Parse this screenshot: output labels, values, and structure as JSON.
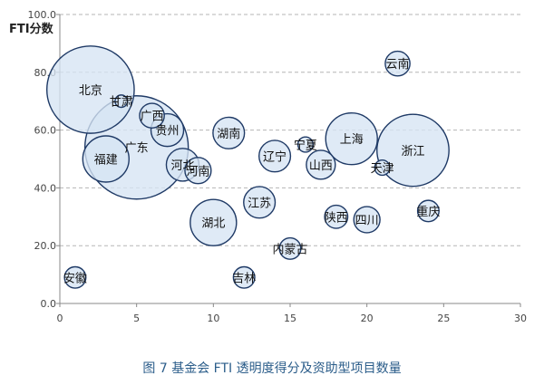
{
  "chart_data": {
    "type": "scatter",
    "bubble": true,
    "ylabel": "FTI分数",
    "xlabel": "",
    "xlim": [
      0,
      30
    ],
    "ylim": [
      0,
      100
    ],
    "xticks": [
      "0",
      "5",
      "10",
      "15",
      "20",
      "25",
      "30"
    ],
    "yticks": [
      "0.0",
      "20.0",
      "40.0",
      "60.0",
      "80.0",
      "100.0"
    ],
    "grid": "horizontal-dashed",
    "bubble_fill": "#d6e4f3",
    "bubble_stroke": "#1f3a66",
    "points": [
      {
        "label": "北京",
        "x": 2,
        "y": 74,
        "size": 100
      },
      {
        "label": "甘肃",
        "x": 4,
        "y": 70,
        "size": 2
      },
      {
        "label": "广西",
        "x": 6,
        "y": 65,
        "size": 8
      },
      {
        "label": "贵州",
        "x": 7,
        "y": 60,
        "size": 14
      },
      {
        "label": "广东",
        "x": 5,
        "y": 54,
        "size": 140
      },
      {
        "label": "湖南",
        "x": 11,
        "y": 59,
        "size": 13
      },
      {
        "label": "福建",
        "x": 3,
        "y": 50,
        "size": 28
      },
      {
        "label": "河北",
        "x": 8,
        "y": 48,
        "size": 14
      },
      {
        "label": "河南",
        "x": 9,
        "y": 46,
        "size": 9
      },
      {
        "label": "辽宁",
        "x": 14,
        "y": 51,
        "size": 13
      },
      {
        "label": "宁夏",
        "x": 16,
        "y": 55,
        "size": 3
      },
      {
        "label": "山西",
        "x": 17,
        "y": 48,
        "size": 11
      },
      {
        "label": "上海",
        "x": 19,
        "y": 57,
        "size": 35
      },
      {
        "label": "浙江",
        "x": 23,
        "y": 53,
        "size": 68
      },
      {
        "label": "天津",
        "x": 21,
        "y": 47,
        "size": 3
      },
      {
        "label": "云南",
        "x": 22,
        "y": 83,
        "size": 8
      },
      {
        "label": "江苏",
        "x": 13,
        "y": 35,
        "size": 13
      },
      {
        "label": "湖北",
        "x": 10,
        "y": 28,
        "size": 28
      },
      {
        "label": "陕西",
        "x": 18,
        "y": 30,
        "size": 7
      },
      {
        "label": "四川",
        "x": 20,
        "y": 29,
        "size": 9
      },
      {
        "label": "重庆",
        "x": 24,
        "y": 32,
        "size": 6
      },
      {
        "label": "内蒙古",
        "x": 15,
        "y": 19,
        "size": 6
      },
      {
        "label": "吉林",
        "x": 12,
        "y": 9,
        "size": 6
      },
      {
        "label": "安徽",
        "x": 1,
        "y": 9,
        "size": 6
      }
    ]
  },
  "caption": "图 7  基金会 FTI 透明度得分及资助型项目数量"
}
